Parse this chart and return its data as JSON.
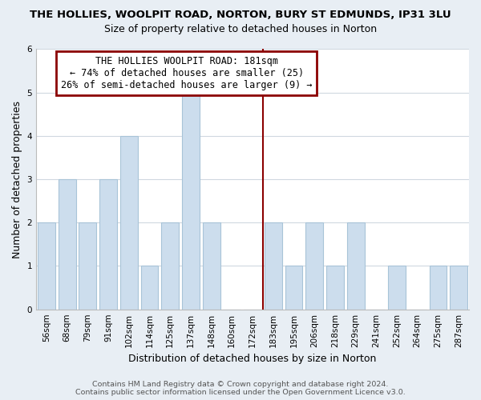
{
  "title": "THE HOLLIES, WOOLPIT ROAD, NORTON, BURY ST EDMUNDS, IP31 3LU",
  "subtitle": "Size of property relative to detached houses in Norton",
  "xlabel": "Distribution of detached houses by size in Norton",
  "ylabel": "Number of detached properties",
  "footnote1": "Contains HM Land Registry data © Crown copyright and database right 2024.",
  "footnote2": "Contains public sector information licensed under the Open Government Licence v3.0.",
  "bar_labels": [
    "56sqm",
    "68sqm",
    "79sqm",
    "91sqm",
    "102sqm",
    "114sqm",
    "125sqm",
    "137sqm",
    "148sqm",
    "160sqm",
    "172sqm",
    "183sqm",
    "195sqm",
    "206sqm",
    "218sqm",
    "229sqm",
    "241sqm",
    "252sqm",
    "264sqm",
    "275sqm",
    "287sqm"
  ],
  "bar_values": [
    2,
    3,
    2,
    3,
    4,
    1,
    2,
    5,
    2,
    0,
    0,
    2,
    1,
    2,
    1,
    2,
    0,
    1,
    0,
    1,
    1
  ],
  "bar_color": "#ccdded",
  "bar_edge_color": "#a8c4d8",
  "subject_line_color": "#8b0000",
  "annotation_title": "THE HOLLIES WOOLPIT ROAD: 181sqm",
  "annotation_line1": "← 74% of detached houses are smaller (25)",
  "annotation_line2": "26% of semi-detached houses are larger (9) →",
  "annotation_box_facecolor": "#ffffff",
  "annotation_box_edgecolor": "#8b0000",
  "ylim": [
    0,
    6
  ],
  "yticks": [
    0,
    1,
    2,
    3,
    4,
    5,
    6
  ],
  "grid_color": "#d0d8e0",
  "bg_color": "#e8eef4",
  "plot_bg_color": "#ffffff",
  "title_fontsize": 9.5,
  "subtitle_fontsize": 9,
  "tick_fontsize": 7.5,
  "axis_label_fontsize": 9,
  "footnote_fontsize": 6.8,
  "annotation_fontsize": 8.5,
  "subject_line_idx": 11
}
